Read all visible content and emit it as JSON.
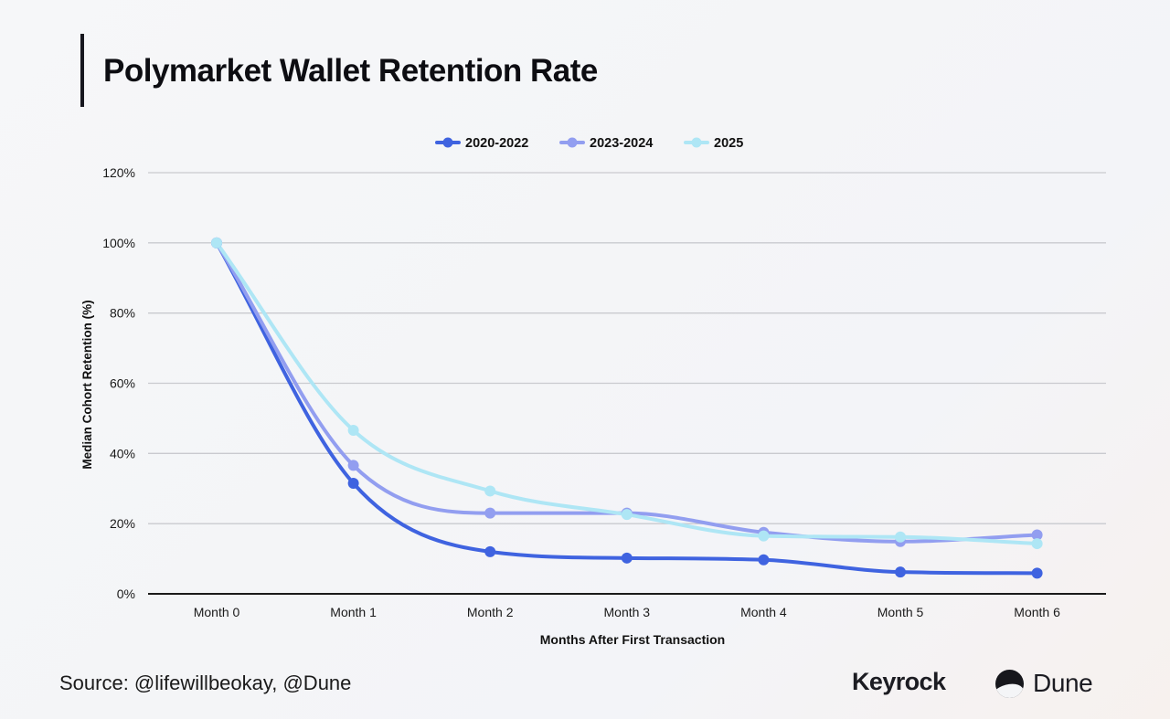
{
  "header": {
    "title": "Polymarket Wallet Retention Rate"
  },
  "footer": {
    "source": "Source: @lifewillbeokay, @Dune"
  },
  "logos": {
    "keyrock": "Keyrock",
    "dune": "Dune"
  },
  "chart_data": {
    "type": "line",
    "title": "Polymarket Wallet Retention Rate",
    "xlabel": "Months After First Transaction",
    "ylabel": "Median Cohort Retention (%)",
    "categories": [
      "Month 0",
      "Month 1",
      "Month 2",
      "Month 3",
      "Month 4",
      "Month 5",
      "Month 6"
    ],
    "ylim": [
      0,
      120
    ],
    "yticks": [
      0,
      20,
      40,
      60,
      80,
      100,
      120
    ],
    "ytick_labels": [
      "0%",
      "20%",
      "40%",
      "60%",
      "80%",
      "100%",
      "120%"
    ],
    "grid": true,
    "legend_position": "top-center",
    "series": [
      {
        "name": "2020-2022",
        "color": "#3f63e0",
        "values": [
          100,
          31.5,
          12,
          10.2,
          9.7,
          6.2,
          5.9
        ]
      },
      {
        "name": "2023-2024",
        "color": "#929ef0",
        "values": [
          100,
          36.6,
          23,
          23,
          17.5,
          14.9,
          16.8
        ]
      },
      {
        "name": "2025",
        "color": "#aee6f5",
        "values": [
          100,
          46.6,
          29.3,
          22.6,
          16.5,
          16.2,
          14.3
        ]
      }
    ]
  }
}
